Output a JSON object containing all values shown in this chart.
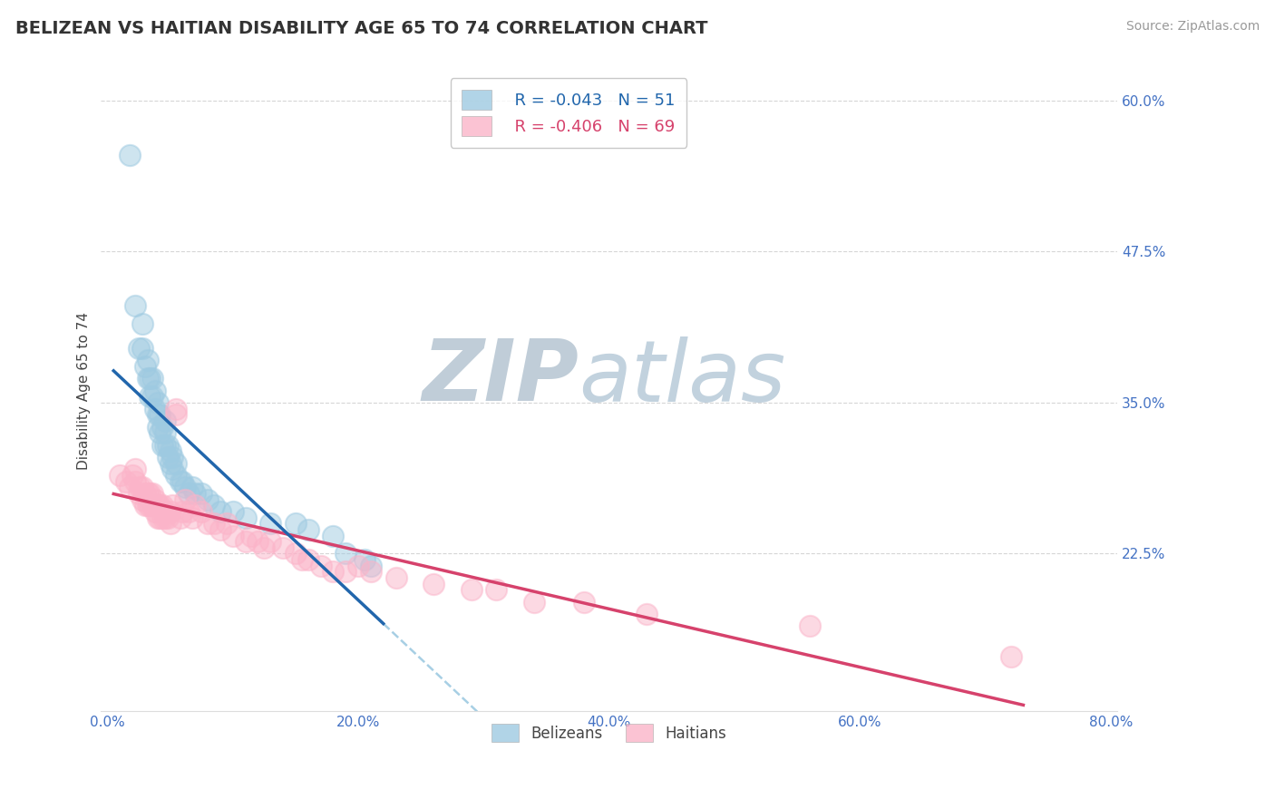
{
  "title": "BELIZEAN VS HAITIAN DISABILITY AGE 65 TO 74 CORRELATION CHART",
  "source_text": "Source: ZipAtlas.com",
  "ylabel": "Disability Age 65 to 74",
  "xlim": [
    -0.005,
    0.805
  ],
  "ylim": [
    0.095,
    0.625
  ],
  "yticks": [
    0.225,
    0.35,
    0.475,
    0.6
  ],
  "ytick_labels": [
    "22.5%",
    "35.0%",
    "47.5%",
    "60.0%"
  ],
  "xticks": [
    0.0,
    0.2,
    0.4,
    0.6,
    0.8
  ],
  "xtick_labels": [
    "0.0%",
    "20.0%",
    "40.0%",
    "60.0%",
    "80.0%"
  ],
  "belizean_color": "#9ecae1",
  "haitian_color": "#fbb4c9",
  "trend_belizean_color": "#2166ac",
  "trend_haitian_color": "#d6426c",
  "dashed_line_color": "#9ecae1",
  "watermark_zip_color": "#c8d8e8",
  "watermark_atlas_color": "#b8cce0",
  "background_color": "#ffffff",
  "title_color": "#333333",
  "axis_label_color": "#444444",
  "tick_label_color": "#4472c4",
  "source_color": "#999999",
  "grid_color": "#cccccc",
  "belizean_x": [
    0.018,
    0.022,
    0.025,
    0.028,
    0.028,
    0.03,
    0.032,
    0.032,
    0.034,
    0.034,
    0.036,
    0.036,
    0.038,
    0.038,
    0.04,
    0.04,
    0.04,
    0.042,
    0.042,
    0.044,
    0.044,
    0.046,
    0.046,
    0.046,
    0.048,
    0.048,
    0.05,
    0.05,
    0.052,
    0.052,
    0.055,
    0.055,
    0.058,
    0.06,
    0.062,
    0.065,
    0.068,
    0.07,
    0.075,
    0.08,
    0.085,
    0.09,
    0.1,
    0.11,
    0.13,
    0.15,
    0.16,
    0.18,
    0.19,
    0.205,
    0.21
  ],
  "belizean_y": [
    0.555,
    0.43,
    0.395,
    0.395,
    0.415,
    0.38,
    0.37,
    0.385,
    0.355,
    0.37,
    0.355,
    0.37,
    0.345,
    0.36,
    0.33,
    0.34,
    0.35,
    0.325,
    0.34,
    0.315,
    0.33,
    0.315,
    0.325,
    0.335,
    0.305,
    0.315,
    0.3,
    0.31,
    0.295,
    0.305,
    0.29,
    0.3,
    0.285,
    0.285,
    0.28,
    0.275,
    0.28,
    0.275,
    0.275,
    0.27,
    0.265,
    0.26,
    0.26,
    0.255,
    0.25,
    0.25,
    0.245,
    0.24,
    0.225,
    0.22,
    0.215
  ],
  "haitian_x": [
    0.01,
    0.015,
    0.018,
    0.02,
    0.022,
    0.022,
    0.025,
    0.026,
    0.028,
    0.028,
    0.03,
    0.03,
    0.032,
    0.032,
    0.034,
    0.034,
    0.036,
    0.036,
    0.038,
    0.038,
    0.04,
    0.04,
    0.042,
    0.042,
    0.044,
    0.044,
    0.046,
    0.046,
    0.048,
    0.05,
    0.05,
    0.052,
    0.055,
    0.055,
    0.058,
    0.06,
    0.062,
    0.065,
    0.068,
    0.07,
    0.075,
    0.08,
    0.085,
    0.09,
    0.095,
    0.1,
    0.11,
    0.115,
    0.12,
    0.125,
    0.13,
    0.14,
    0.15,
    0.155,
    0.16,
    0.17,
    0.18,
    0.19,
    0.2,
    0.21,
    0.23,
    0.26,
    0.29,
    0.31,
    0.34,
    0.38,
    0.43,
    0.56,
    0.72
  ],
  "haitian_y": [
    0.29,
    0.285,
    0.28,
    0.29,
    0.285,
    0.295,
    0.275,
    0.28,
    0.27,
    0.28,
    0.265,
    0.275,
    0.265,
    0.275,
    0.265,
    0.275,
    0.265,
    0.275,
    0.26,
    0.27,
    0.255,
    0.265,
    0.255,
    0.265,
    0.255,
    0.265,
    0.255,
    0.26,
    0.255,
    0.25,
    0.26,
    0.265,
    0.345,
    0.34,
    0.255,
    0.26,
    0.27,
    0.26,
    0.255,
    0.265,
    0.26,
    0.25,
    0.25,
    0.245,
    0.25,
    0.24,
    0.235,
    0.24,
    0.235,
    0.23,
    0.235,
    0.23,
    0.225,
    0.22,
    0.22,
    0.215,
    0.21,
    0.21,
    0.215,
    0.21,
    0.205,
    0.2,
    0.195,
    0.195,
    0.185,
    0.185,
    0.175,
    0.165,
    0.14
  ]
}
